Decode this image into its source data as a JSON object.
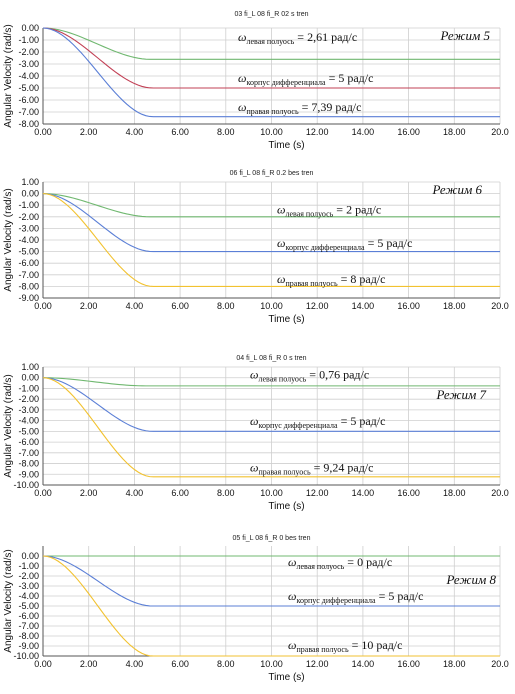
{
  "chart_data": [
    {
      "type": "line",
      "title": "03 fi_L 08 fi_R 02 s tren",
      "mode_label": "Режим 5",
      "xlabel": "Time (s)",
      "ylabel": "Angular Velocity (rad/s)",
      "xlim": [
        0,
        20
      ],
      "ylim": [
        -8,
        0
      ],
      "x_ticks": [
        "0.00",
        "2.00",
        "4.00",
        "6.00",
        "8.00",
        "10.00",
        "12.00",
        "14.00",
        "16.00",
        "18.00",
        "20.0"
      ],
      "y_ticks": [
        "0.00",
        "-1.00",
        "-2.00",
        "-3.00",
        "-4.00",
        "-5.00",
        "-6.00",
        "-7.00",
        "-8.00"
      ],
      "grid": true,
      "series": [
        {
          "color": "#70b870",
          "final": -2.61,
          "t_end": 4.7
        },
        {
          "color": "#c24055",
          "final": -5.0,
          "t_end": 4.8
        },
        {
          "color": "#5b7fd6",
          "final": -7.39,
          "t_end": 4.8
        }
      ],
      "annotations": [
        {
          "sym": "ω",
          "sub": "левая полуось",
          "val": " = 2,61 рад/с",
          "y": -1.1
        },
        {
          "sym": "ω",
          "sub": "корпус дифференциала",
          "val": " = 5 рад/с",
          "y": -4.5
        },
        {
          "sym": "ω",
          "sub": "правая полуось",
          "val": " = 7,39 рад/с",
          "y": -6.9
        }
      ]
    },
    {
      "type": "line",
      "title": "06 fi_L 08 fi_R 0.2 bes tren",
      "mode_label": "Режим 6",
      "xlabel": "Time (s)",
      "ylabel": "Angular Velocity (rad/s)",
      "xlim": [
        0,
        20
      ],
      "ylim": [
        -9,
        1
      ],
      "x_ticks": [
        "0.00",
        "2.00",
        "4.00",
        "6.00",
        "8.00",
        "10.00",
        "12.00",
        "14.00",
        "16.00",
        "18.00",
        "20.0"
      ],
      "y_ticks": [
        "1.00",
        "0.00",
        "-1.00",
        "-2.00",
        "-3.00",
        "-4.00",
        "-5.00",
        "-6.00",
        "-7.00",
        "-8.00",
        "-9.00"
      ],
      "grid": true,
      "series": [
        {
          "color": "#70b870",
          "final": -2.0,
          "t_end": 4.7
        },
        {
          "color": "#5b7fd6",
          "final": -5.0,
          "t_end": 4.8
        },
        {
          "color": "#f2c230",
          "final": -8.0,
          "t_end": 4.8
        }
      ],
      "annotations": [
        {
          "sym": "ω",
          "sub": "левая полуось",
          "val": " = 2 рад/с",
          "y": -1.7
        },
        {
          "sym": "ω",
          "sub": "корпус дифференциала",
          "val": " = 5 рад/с",
          "y": -4.6
        },
        {
          "sym": "ω",
          "sub": "правая полуось",
          "val": " = 8 рад/с",
          "y": -7.7
        }
      ]
    },
    {
      "type": "line",
      "title": "04 fi_L 08 fi_R 0 s tren",
      "mode_label": "Режим 7",
      "xlabel": "Time (s)",
      "ylabel": "Angular Velocity (rad/s)",
      "xlim": [
        0,
        20
      ],
      "ylim": [
        -10,
        1
      ],
      "x_ticks": [
        "0.00",
        "2.00",
        "4.00",
        "6.00",
        "8.00",
        "10.00",
        "12.00",
        "14.00",
        "16.00",
        "18.00",
        "20.0"
      ],
      "y_ticks": [
        "1.00",
        "0.00",
        "-1.00",
        "-2.00",
        "-3.00",
        "-4.00",
        "-5.00",
        "-6.00",
        "-7.00",
        "-8.00",
        "-9.00",
        "-10.00"
      ],
      "grid": true,
      "series": [
        {
          "color": "#70b870",
          "final": -0.76,
          "t_end": 4.5
        },
        {
          "color": "#5b7fd6",
          "final": -5.0,
          "t_end": 4.8
        },
        {
          "color": "#f2c230",
          "final": -9.24,
          "t_end": 4.8
        }
      ],
      "annotations": [
        {
          "sym": "ω",
          "sub": "левая полуось",
          "val": " = 0,76 рад/с",
          "y": -0.05
        },
        {
          "sym": "ω",
          "sub": "корпус дифференциала",
          "val": " = 5 рад/с",
          "y": -4.4
        },
        {
          "sym": "ω",
          "sub": "правая полуось",
          "val": " = 9,24 рад/с",
          "y": -8.75
        }
      ]
    },
    {
      "type": "line",
      "title": "05 fi_L 08 fi_R 0 bes tren",
      "mode_label": "Режим 8",
      "xlabel": "Time (s)",
      "ylabel": "Angular Velocity (rad/s)",
      "xlim": [
        0,
        20
      ],
      "ylim": [
        -10,
        1
      ],
      "x_ticks": [
        "0.00",
        "2.00",
        "4.00",
        "6.00",
        "8.00",
        "10.00",
        "12.00",
        "14.00",
        "16.00",
        "18.00",
        "20.0"
      ],
      "y_ticks": [
        "0.00",
        "-1.00",
        "-2.00",
        "-3.00",
        "-4.00",
        "-5.00",
        "-6.00",
        "-7.00",
        "-8.00",
        "-9.00",
        "-10.00"
      ],
      "grid": true,
      "series": [
        {
          "color": "#70b870",
          "final": 0.0,
          "t_end": 4.5
        },
        {
          "color": "#5b7fd6",
          "final": -5.0,
          "t_end": 4.8
        },
        {
          "color": "#f2c230",
          "final": -10.0,
          "t_end": 4.8
        }
      ],
      "annotations": [
        {
          "sym": "ω",
          "sub": "левая полуось",
          "val": " = 0 рад/с",
          "y": -1.0
        },
        {
          "sym": "ω",
          "sub": "корпус дифференциала",
          "val": " = 5 рад/с",
          "y": -4.4
        },
        {
          "sym": "ω",
          "sub": "правая полуось",
          "val": " = 10 рад/с",
          "y": -9.3
        }
      ]
    }
  ]
}
